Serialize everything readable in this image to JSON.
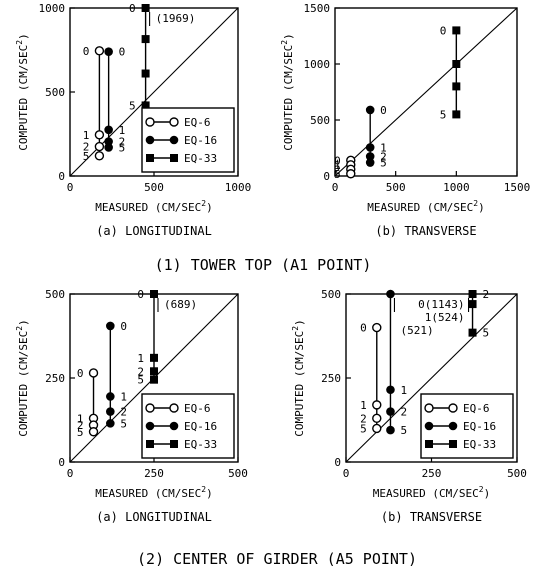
{
  "figure": {
    "group_titles": [
      "(1) TOWER TOP  (A1 POINT)",
      "(2) CENTER OF GIRDER  (A5 POINT)"
    ]
  },
  "colors": {
    "ink": "#000000",
    "background": "#ffffff"
  },
  "chart_data": [
    {
      "type": "scatter",
      "caption": "(a) LONGITUDINAL",
      "xlabel": "MEASURED (CM/SEC²)",
      "ylabel": "COMPUTED (CM/SEC²)",
      "xlim": [
        0,
        1000
      ],
      "ylim": [
        0,
        1000
      ],
      "xticks": [
        0,
        500,
        1000
      ],
      "yticks": [
        0,
        500,
        1000
      ],
      "xtick_labels": [
        "0",
        "500",
        "1000"
      ],
      "ytick_labels": [
        "0",
        "500",
        "1000"
      ],
      "diagonal": true,
      "legend_position": "bottom-right",
      "series": [
        {
          "name": "EQ-6",
          "marker": "open-circle",
          "x": 175,
          "points": [
            {
              "label": "0",
              "y": 745
            },
            {
              "label": "1",
              "y": 245
            },
            {
              "label": "2",
              "y": 175
            },
            {
              "label": "5",
              "y": 120
            }
          ]
        },
        {
          "name": "EQ-16",
          "marker": "filled-circle",
          "x": 230,
          "points": [
            {
              "label": "0",
              "y": 740
            },
            {
              "label": "1",
              "y": 275
            },
            {
              "label": "2",
              "y": 205
            },
            {
              "label": "5",
              "y": 170
            }
          ]
        },
        {
          "name": "EQ-33",
          "marker": "filled-square",
          "x": 450,
          "points": [
            {
              "label": "0",
              "y": 1000
            },
            {
              "label": "",
              "y": 815
            },
            {
              "label": "",
              "y": 610
            },
            {
              "label": "5",
              "y": 420
            }
          ],
          "off_scale_note": "(1969)"
        }
      ]
    },
    {
      "type": "scatter",
      "caption": "(b) TRANSVERSE",
      "xlabel": "MEASURED (CM/SEC²)",
      "ylabel": "COMPUTED (CM/SEC²)",
      "xlim": [
        0,
        1500
      ],
      "ylim": [
        0,
        1500
      ],
      "xticks": [
        0,
        500,
        1000,
        1500
      ],
      "yticks": [
        0,
        500,
        1000,
        1500
      ],
      "xtick_labels": [
        "0",
        "500",
        "1000",
        "1500"
      ],
      "ytick_labels": [
        "0",
        "500",
        "1000",
        "1500"
      ],
      "diagonal": true,
      "legend_position": "none",
      "series": [
        {
          "name": "EQ-6",
          "marker": "open-circle",
          "x": 130,
          "points": [
            {
              "label": "0",
              "y": 140
            },
            {
              "label": "1",
              "y": 100
            },
            {
              "label": "2",
              "y": 60
            },
            {
              "label": "5",
              "y": 20
            }
          ]
        },
        {
          "name": "EQ-16",
          "marker": "filled-circle",
          "x": 290,
          "points": [
            {
              "label": "0",
              "y": 590
            },
            {
              "label": "1",
              "y": 255
            },
            {
              "label": "2",
              "y": 175
            },
            {
              "label": "5",
              "y": 120
            }
          ]
        },
        {
          "name": "EQ-33",
          "marker": "filled-square",
          "x": 1000,
          "points": [
            {
              "label": "0",
              "y": 1300
            },
            {
              "label": "",
              "y": 1000
            },
            {
              "label": "",
              "y": 800
            },
            {
              "label": "5",
              "y": 550
            }
          ]
        }
      ]
    },
    {
      "type": "scatter",
      "caption": "(a) LONGITUDINAL",
      "xlabel": "MEASURED (CM/SEC²)",
      "ylabel": "COMPUTED (CM/SEC²)",
      "xlim": [
        0,
        500
      ],
      "ylim": [
        0,
        500
      ],
      "xticks": [
        0,
        250,
        500
      ],
      "yticks": [
        0,
        250,
        500
      ],
      "xtick_labels": [
        "0",
        "250",
        "500"
      ],
      "ytick_labels": [
        "0",
        "250",
        "500"
      ],
      "diagonal": true,
      "legend_position": "bottom-right",
      "series": [
        {
          "name": "EQ-6",
          "marker": "open-circle",
          "x": 70,
          "points": [
            {
              "label": "0",
              "y": 265
            },
            {
              "label": "1",
              "y": 130
            },
            {
              "label": "2",
              "y": 110
            },
            {
              "label": "5",
              "y": 90
            }
          ]
        },
        {
          "name": "EQ-16",
          "marker": "filled-circle",
          "x": 120,
          "points": [
            {
              "label": "0",
              "y": 405
            },
            {
              "label": "1",
              "y": 195
            },
            {
              "label": "2",
              "y": 150
            },
            {
              "label": "5",
              "y": 115
            }
          ]
        },
        {
          "name": "EQ-33",
          "marker": "filled-square",
          "x": 250,
          "points": [
            {
              "label": "0",
              "y": 500
            },
            {
              "label": "1",
              "y": 310
            },
            {
              "label": "2",
              "y": 270
            },
            {
              "label": "5",
              "y": 245
            }
          ],
          "off_scale_note": "(689)"
        }
      ]
    },
    {
      "type": "scatter",
      "caption": "(b) TRANSVERSE",
      "xlabel": "MEASURED (CM/SEC²)",
      "ylabel": "COMPUTED (CM/SEC²)",
      "xlim": [
        0,
        500
      ],
      "ylim": [
        0,
        500
      ],
      "xticks": [
        0,
        250,
        500
      ],
      "yticks": [
        0,
        250,
        500
      ],
      "xtick_labels": [
        "0",
        "250",
        "500"
      ],
      "ytick_labels": [
        "0",
        "250",
        "500"
      ],
      "diagonal": true,
      "legend_position": "bottom-right",
      "series": [
        {
          "name": "EQ-6",
          "marker": "open-circle",
          "x": 90,
          "points": [
            {
              "label": "0",
              "y": 400
            },
            {
              "label": "1",
              "y": 170
            },
            {
              "label": "2",
              "y": 130
            },
            {
              "label": "5",
              "y": 100
            }
          ]
        },
        {
          "name": "EQ-16",
          "marker": "filled-circle",
          "x": 130,
          "points": [
            {
              "label": "",
              "y": 500
            },
            {
              "label": "1",
              "y": 215
            },
            {
              "label": "2",
              "y": 150
            },
            {
              "label": "5",
              "y": 95
            }
          ],
          "off_scale_note": "(521)"
        },
        {
          "name": "EQ-33",
          "marker": "filled-square",
          "x": 370,
          "points": [
            {
              "label": "2",
              "y": 500
            },
            {
              "label": "",
              "y": 470
            },
            {
              "label": "5",
              "y": 385
            }
          ],
          "off_scale_note": "0(1143)\n1(524)"
        }
      ]
    }
  ]
}
